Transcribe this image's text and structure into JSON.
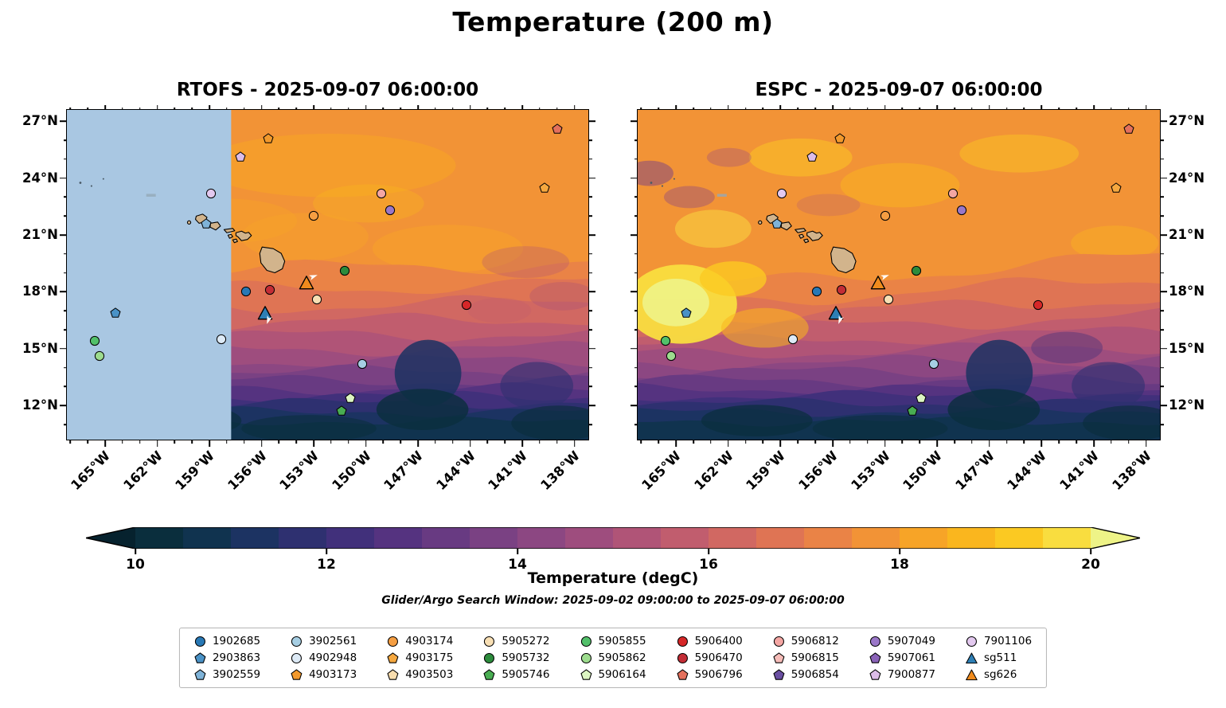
{
  "title": "Temperature (200 m)",
  "search_window": "Glider/Argo Search Window: 2025-09-02 09:00:00 to 2025-09-07 06:00:00",
  "chart_data": {
    "type": "heatmap",
    "description": "Two-panel filled-contour map of ocean temperature at 200 m depth over the Hawaii region with Argo float and glider positions",
    "panels": [
      {
        "title": "RTOFS - 2025-09-07 06:00:00",
        "missing_data_region": "west of ~157.5W shown as flat light blue"
      },
      {
        "title": "ESPC - 2025-09-07 06:00:00",
        "missing_data_region": ""
      }
    ],
    "axes": {
      "lon_min": -167.2,
      "lon_max": -137.2,
      "lat_min": 10.2,
      "lat_max": 27.6,
      "x_ticks": [
        {
          "v": -165,
          "label": "165°W"
        },
        {
          "v": -162,
          "label": "162°W"
        },
        {
          "v": -159,
          "label": "159°W"
        },
        {
          "v": -156,
          "label": "156°W"
        },
        {
          "v": -153,
          "label": "153°W"
        },
        {
          "v": -150,
          "label": "150°W"
        },
        {
          "v": -147,
          "label": "147°W"
        },
        {
          "v": -144,
          "label": "144°W"
        },
        {
          "v": -141,
          "label": "141°W"
        },
        {
          "v": -138,
          "label": "138°W"
        }
      ],
      "y_ticks": [
        {
          "v": 27,
          "label": "27°N"
        },
        {
          "v": 24,
          "label": "24°N"
        },
        {
          "v": 21,
          "label": "21°N"
        },
        {
          "v": 18,
          "label": "18°N"
        },
        {
          "v": 15,
          "label": "15°N"
        },
        {
          "v": 12,
          "label": "12°N"
        }
      ]
    },
    "colorbar": {
      "label": "Temperature (degC)",
      "vmin": 10,
      "vmax": 20,
      "ticks": [
        10,
        12,
        14,
        16,
        18,
        20
      ],
      "colors": [
        "#0a2e3d",
        "#10334f",
        "#1c3362",
        "#2e3070",
        "#41307b",
        "#553380",
        "#683a82",
        "#7a4183",
        "#8c4782",
        "#9e4d7e",
        "#b05477",
        "#c15d6e",
        "#d16862",
        "#df7454",
        "#ea8346",
        "#f29336",
        "#f7a427",
        "#fab61e",
        "#fbc922",
        "#f9dd3f"
      ],
      "under": "#06222e",
      "over": "#eef387",
      "extend": "both"
    },
    "markers": [
      {
        "id": "4903173",
        "lon": -155.6,
        "lat": 26.1
      },
      {
        "id": "7900877",
        "lon": -157.2,
        "lat": 25.1
      },
      {
        "id": "5906796",
        "lon": -139.0,
        "lat": 26.6
      },
      {
        "id": "7901106",
        "lon": -158.9,
        "lat": 23.2
      },
      {
        "id": "4903175",
        "lon": -139.7,
        "lat": 23.5
      },
      {
        "id": "5906812",
        "lon": -149.1,
        "lat": 23.2
      },
      {
        "id": "5907049",
        "lon": -148.6,
        "lat": 22.3
      },
      {
        "id": "4903174",
        "lon": -153.0,
        "lat": 22.0
      },
      {
        "id": "3902559",
        "lon": -159.2,
        "lat": 21.6
      },
      {
        "id": "5905732",
        "lon": -151.2,
        "lat": 19.1
      },
      {
        "id": "sg626",
        "lon": -153.4,
        "lat": 18.5
      },
      {
        "id": "5906470",
        "lon": -155.5,
        "lat": 18.1
      },
      {
        "id": "1902685",
        "lon": -156.9,
        "lat": 18.0
      },
      {
        "id": "5905272",
        "lon": -152.8,
        "lat": 17.6
      },
      {
        "id": "5906400",
        "lon": -144.2,
        "lat": 17.3
      },
      {
        "id": "sg511",
        "lon": -155.8,
        "lat": 16.9
      },
      {
        "id": "2903863",
        "lon": -164.4,
        "lat": 16.9
      },
      {
        "id": "4902948",
        "lon": -158.3,
        "lat": 15.5
      },
      {
        "id": "5905855",
        "lon": -165.6,
        "lat": 15.4
      },
      {
        "id": "5905862",
        "lon": -165.3,
        "lat": 14.6
      },
      {
        "id": "3902561",
        "lon": -150.2,
        "lat": 14.2
      },
      {
        "id": "5906164",
        "lon": -150.9,
        "lat": 12.4
      },
      {
        "id": "5905746",
        "lon": -151.4,
        "lat": 11.7
      },
      {
        "id": "heading-arrow-1",
        "shape": "arrow",
        "color": "#ffffff",
        "lon": -153.0,
        "lat": 18.8,
        "rot": -20
      },
      {
        "id": "heading-arrow-2",
        "shape": "arrow",
        "color": "#ffffff",
        "lon": -155.6,
        "lat": 16.5,
        "rot": 110
      }
    ],
    "legend_rows": [
      [
        {
          "label": "1902685",
          "shape": "circle",
          "color": "#2878b5"
        },
        {
          "label": "3902561",
          "shape": "circle",
          "color": "#a6cee3"
        },
        {
          "label": "4903174",
          "shape": "circle",
          "color": "#f59e42"
        },
        {
          "label": "5905272",
          "shape": "circle",
          "color": "#f8dfb4"
        },
        {
          "label": "5905855",
          "shape": "circle",
          "color": "#52c06a"
        },
        {
          "label": "5906400",
          "shape": "circle",
          "color": "#d62728"
        },
        {
          "label": "5906812",
          "shape": "circle",
          "color": "#f4a6a3"
        },
        {
          "label": "5907049",
          "shape": "circle",
          "color": "#9a77c8"
        },
        {
          "label": "7901106",
          "shape": "circle",
          "color": "#e3c9ef"
        }
      ],
      [
        {
          "label": "2903863",
          "shape": "pentagon",
          "color": "#4a92c6"
        },
        {
          "label": "4902948",
          "shape": "circle",
          "color": "#ddeaf6"
        },
        {
          "label": "4903175",
          "shape": "pentagon",
          "color": "#f6a83f"
        },
        {
          "label": "5905732",
          "shape": "circle",
          "color": "#2c8b3c"
        },
        {
          "label": "5905862",
          "shape": "circle",
          "color": "#9ddc8e"
        },
        {
          "label": "5906470",
          "shape": "circle",
          "color": "#c32d36"
        },
        {
          "label": "5906815",
          "shape": "pentagon",
          "color": "#f6bcb8"
        },
        {
          "label": "5907061",
          "shape": "pentagon",
          "color": "#8a63b8"
        },
        {
          "label": "sg511",
          "shape": "triangle",
          "color": "#2e7fb5"
        }
      ],
      [
        {
          "label": "3902559",
          "shape": "pentagon",
          "color": "#7fb3d8"
        },
        {
          "label": "4903173",
          "shape": "pentagon",
          "color": "#f2992c"
        },
        {
          "label": "4903503",
          "shape": "pentagon",
          "color": "#f8ddae"
        },
        {
          "label": "5905746",
          "shape": "pentagon",
          "color": "#49ad52"
        },
        {
          "label": "5906164",
          "shape": "pentagon",
          "color": "#dcf5c2"
        },
        {
          "label": "5906796",
          "shape": "pentagon",
          "color": "#e4705c"
        },
        {
          "label": "5906854",
          "shape": "pentagon",
          "color": "#6a4fa2"
        },
        {
          "label": "7900877",
          "shape": "pentagon",
          "color": "#dcbce8"
        },
        {
          "label": "sg626",
          "shape": "triangle",
          "color": "#f08b1d"
        }
      ]
    ],
    "map_colors": {
      "land": "#d2b48c",
      "missing_data": "#a9c7e2"
    }
  }
}
